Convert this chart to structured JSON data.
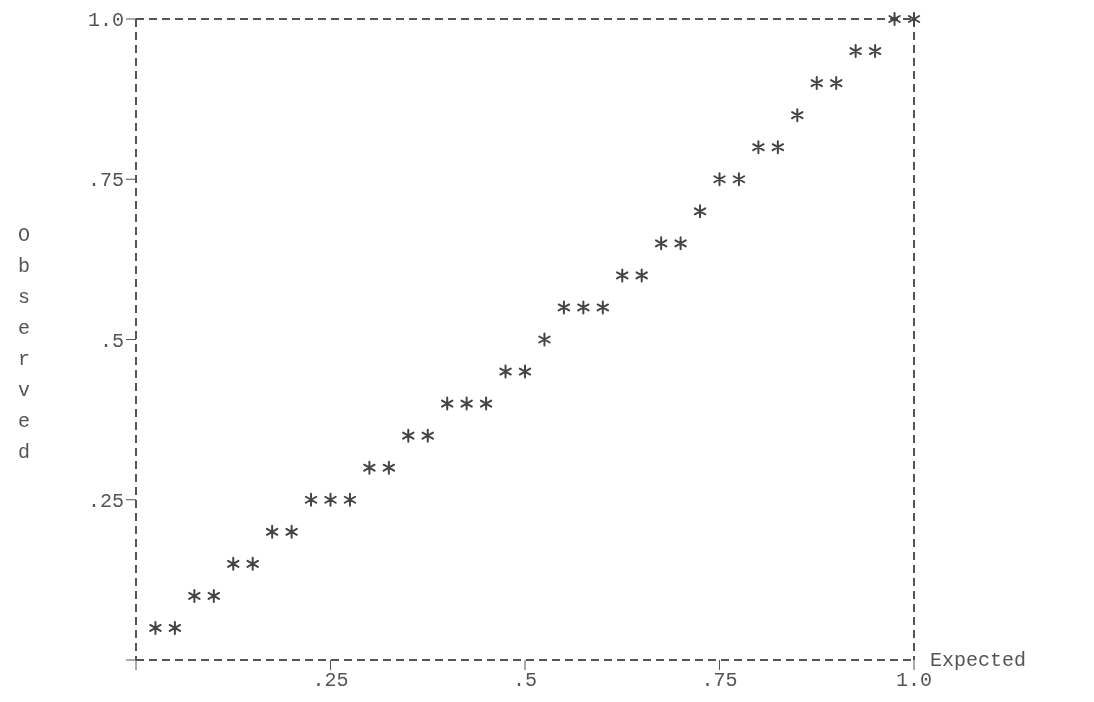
{
  "chart_data": {
    "type": "scatter",
    "xlabel": "Expected",
    "ylabel": "Observed",
    "x": [
      0.025,
      0.05,
      0.075,
      0.1,
      0.125,
      0.15,
      0.175,
      0.2,
      0.225,
      0.25,
      0.275,
      0.3,
      0.325,
      0.35,
      0.375,
      0.4,
      0.425,
      0.45,
      0.475,
      0.5,
      0.525,
      0.55,
      0.575,
      0.6,
      0.625,
      0.65,
      0.675,
      0.7,
      0.725,
      0.75,
      0.775,
      0.8,
      0.825,
      0.85,
      0.875,
      0.9,
      0.925,
      0.95,
      0.975,
      1.0
    ],
    "series": [
      {
        "color": "#444444",
        "values": [
          0.05,
          0.05,
          0.1,
          0.1,
          0.15,
          0.15,
          0.2,
          0.2,
          0.25,
          0.25,
          0.25,
          0.3,
          0.3,
          0.35,
          0.35,
          0.4,
          0.4,
          0.4,
          0.45,
          0.45,
          0.5,
          0.55,
          0.55,
          0.55,
          0.6,
          0.6,
          0.65,
          0.65,
          0.7,
          0.75,
          0.75,
          0.8,
          0.8,
          0.85,
          0.9,
          0.9,
          0.95,
          0.95,
          1.0,
          1.0
        ]
      }
    ],
    "xlim": [
      0,
      1
    ],
    "ylim": [
      0,
      1
    ],
    "xticks": [
      {
        "value": 0,
        "label": null
      },
      {
        "value": 0.25,
        "label": ".25"
      },
      {
        "value": 0.5,
        "label": ".5"
      },
      {
        "value": 0.75,
        "label": ".75"
      },
      {
        "value": 1,
        "label": "1.0"
      }
    ],
    "yticks": [
      {
        "value": 0,
        "label": null
      },
      {
        "value": 0.25,
        "label": ".25"
      },
      {
        "value": 0.5,
        "label": ".5"
      },
      {
        "value": 0.75,
        "label": ".75"
      },
      {
        "value": 1,
        "label": "1.0"
      }
    ],
    "marker": "cross",
    "grid": false,
    "legend": false
  }
}
